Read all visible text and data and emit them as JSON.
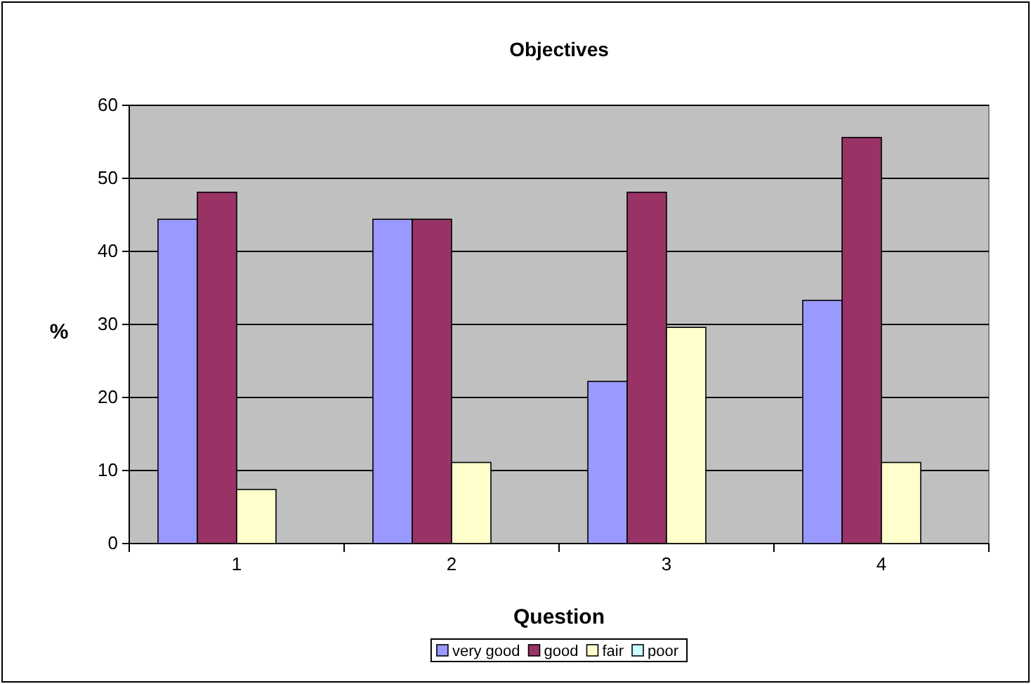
{
  "chart_data": {
    "type": "bar",
    "title": "Objectives",
    "xlabel": "Question",
    "ylabel": "%",
    "categories": [
      "1",
      "2",
      "3",
      "4"
    ],
    "series": [
      {
        "name": "very good",
        "color": "#9999ff",
        "values": [
          44.4,
          44.4,
          22.2,
          33.3
        ]
      },
      {
        "name": "good",
        "color": "#993366",
        "values": [
          48.1,
          44.4,
          48.1,
          55.6
        ]
      },
      {
        "name": "fair",
        "color": "#ffffcc",
        "values": [
          7.4,
          11.1,
          29.6,
          11.1
        ]
      },
      {
        "name": "poor",
        "color": "#ccffff",
        "values": [
          0,
          0,
          0,
          0
        ]
      }
    ],
    "ylim": [
      0,
      60
    ],
    "yticks": [
      0,
      10,
      20,
      30,
      40,
      50,
      60
    ],
    "grid": "y",
    "legend": "bottom"
  }
}
